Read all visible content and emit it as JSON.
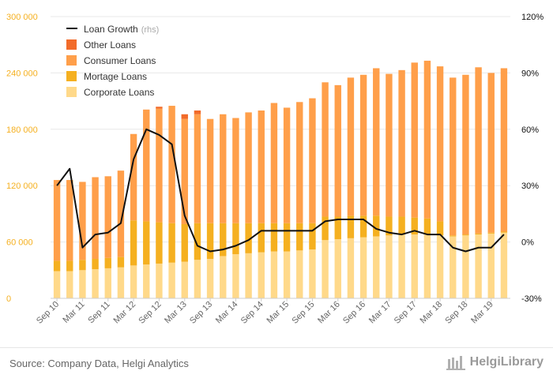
{
  "chart_data": {
    "type": "bar",
    "stacked": true,
    "categories": [
      "Sep 10",
      "Dec 10",
      "Mar 11",
      "Jun 11",
      "Sep 11",
      "Dec 11",
      "Mar 12",
      "Jun 12",
      "Sep 12",
      "Dec 12",
      "Mar 13",
      "Jun 13",
      "Sep 13",
      "Dec 13",
      "Mar 14",
      "Jun 14",
      "Sep 14",
      "Dec 14",
      "Mar 15",
      "Jun 15",
      "Sep 15",
      "Dec 15",
      "Mar 16",
      "Jun 16",
      "Sep 16",
      "Dec 16",
      "Mar 17",
      "Jun 17",
      "Sep 17",
      "Dec 17",
      "Mar 18",
      "Jun 18",
      "Sep 18",
      "Dec 18",
      "Mar 19",
      "Jun 19"
    ],
    "x_tick_labels": [
      "Sep 10",
      "Mar 11",
      "Sep 11",
      "Mar 12",
      "Sep 12",
      "Mar 13",
      "Sep 13",
      "Mar 14",
      "Sep 14",
      "Mar 15",
      "Sep 15",
      "Mar 16",
      "Sep 16",
      "Mar 17",
      "Sep 17",
      "Mar 18",
      "Sep 18",
      "Mar 19"
    ],
    "series": [
      {
        "name": "Corporate Loans",
        "color": "#ffd98a",
        "axis": "left",
        "values": [
          29000,
          29000,
          30000,
          31000,
          32000,
          33000,
          35000,
          36000,
          37000,
          38000,
          39000,
          41000,
          42000,
          45000,
          47000,
          48000,
          49000,
          50000,
          50000,
          51000,
          52000,
          62000,
          63000,
          64000,
          65000,
          66000,
          67000,
          68000,
          68000,
          68000,
          67000,
          66000,
          67000,
          68000,
          69000,
          70000
        ]
      },
      {
        "name": "Mortage Loans",
        "color": "#f5b020",
        "axis": "left",
        "values": [
          11000,
          11000,
          11000,
          11000,
          11000,
          11000,
          48000,
          46000,
          44000,
          42000,
          40000,
          39000,
          38000,
          35000,
          33000,
          32000,
          31000,
          30000,
          30000,
          29000,
          28000,
          25000,
          24000,
          24000,
          23000,
          22000,
          20000,
          19000,
          18000,
          17000,
          15000,
          1000,
          1000,
          1000,
          1000,
          1000
        ]
      },
      {
        "name": "Consumer Loans",
        "color": "#ff9f4a",
        "axis": "left",
        "values": [
          86000,
          86000,
          83000,
          87000,
          87000,
          92000,
          92000,
          119000,
          121000,
          125000,
          112000,
          116000,
          111000,
          116000,
          112000,
          118000,
          120000,
          128000,
          123000,
          129000,
          133000,
          143000,
          140000,
          147000,
          150000,
          157000,
          152000,
          156000,
          165000,
          168000,
          165000,
          168000,
          170000,
          177000,
          170000,
          174000
        ]
      },
      {
        "name": "Other Loans",
        "color": "#f26b2a",
        "axis": "left",
        "values": [
          0,
          0,
          0,
          0,
          0,
          0,
          0,
          0,
          2000,
          0,
          5000,
          4000,
          0,
          0,
          0,
          0,
          0,
          0,
          0,
          0,
          0,
          0,
          0,
          0,
          0,
          0,
          0,
          0,
          0,
          0,
          0,
          0,
          0,
          0,
          0,
          0
        ]
      },
      {
        "name": "Loan Growth",
        "type": "line",
        "color": "#111111",
        "axis": "right",
        "values": [
          30,
          39,
          -3,
          4,
          5,
          10,
          44,
          60,
          57,
          52,
          14,
          -2,
          -5,
          -4,
          -2,
          1,
          6,
          6,
          6,
          6,
          6,
          11,
          12,
          12,
          12,
          7,
          5,
          4,
          6,
          4,
          4,
          -3,
          -5,
          -3,
          -3,
          4
        ]
      }
    ],
    "legend": [
      {
        "label": "Loan Growth",
        "suffix": "(rhs)",
        "kind": "line",
        "color": "#111111"
      },
      {
        "label": "Other Loans",
        "kind": "box",
        "color": "#f26b2a"
      },
      {
        "label": "Consumer Loans",
        "kind": "box",
        "color": "#ff9f4a"
      },
      {
        "label": "Mortage Loans",
        "kind": "box",
        "color": "#f5b020"
      },
      {
        "label": "Corporate Loans",
        "kind": "box",
        "color": "#ffd98a"
      }
    ],
    "legend_placement": "top-left",
    "ylim_left": [
      0,
      300000
    ],
    "yticks_left": [
      "0",
      "60 000",
      "120 000",
      "180 000",
      "240 000",
      "300 000"
    ],
    "yticks_left_values": [
      0,
      60000,
      120000,
      180000,
      240000,
      300000
    ],
    "ylim_right": [
      -30,
      120
    ],
    "yticks_right": [
      "-30%",
      "0%",
      "30%",
      "60%",
      "90%",
      "120%"
    ],
    "yticks_right_values": [
      -30,
      0,
      30,
      60,
      90,
      120
    ],
    "grid": true,
    "left_tick_color": "#f5b020",
    "right_tick_color": "#111111"
  },
  "footer": {
    "source": "Source: Company Data, Helgi Analytics",
    "brand": "HelgiLibrary"
  }
}
